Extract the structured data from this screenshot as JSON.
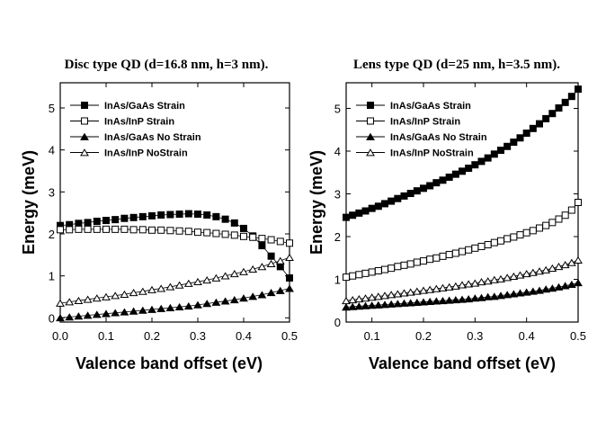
{
  "chart_data": [
    {
      "type": "scatter",
      "title": "Disc type QD (d=16.8 nm, h=3 nm).",
      "xlabel": "Valence band offset (eV)",
      "ylabel": "Energy (meV)",
      "xlim": [
        0.0,
        0.5
      ],
      "ylim": [
        -0.1,
        5.6
      ],
      "xticks": [
        "0.0",
        "0.1",
        "0.2",
        "0.3",
        "0.4",
        "0.5"
      ],
      "yticks": [
        "0",
        "1",
        "2",
        "3",
        "4",
        "5"
      ],
      "legend_position": "top-left",
      "series": [
        {
          "name": "InAs/GaAs Strain",
          "marker": "square",
          "fill": "filled",
          "x": [
            0.0,
            0.02,
            0.04,
            0.06,
            0.08,
            0.1,
            0.12,
            0.14,
            0.16,
            0.18,
            0.2,
            0.22,
            0.24,
            0.26,
            0.28,
            0.3,
            0.32,
            0.34,
            0.36,
            0.38,
            0.4,
            0.42,
            0.44,
            0.46,
            0.48,
            0.5
          ],
          "y": [
            2.2,
            2.22,
            2.25,
            2.27,
            2.3,
            2.32,
            2.34,
            2.37,
            2.39,
            2.41,
            2.43,
            2.45,
            2.46,
            2.47,
            2.48,
            2.47,
            2.45,
            2.41,
            2.35,
            2.26,
            2.13,
            1.95,
            1.72,
            1.47,
            1.22,
            0.95
          ]
        },
        {
          "name": "InAs/InP Strain",
          "marker": "square",
          "fill": "open",
          "x": [
            0.0,
            0.02,
            0.04,
            0.06,
            0.08,
            0.1,
            0.12,
            0.14,
            0.16,
            0.18,
            0.2,
            0.22,
            0.24,
            0.26,
            0.28,
            0.3,
            0.32,
            0.34,
            0.36,
            0.38,
            0.4,
            0.42,
            0.44,
            0.46,
            0.48,
            0.5
          ],
          "y": [
            2.1,
            2.1,
            2.11,
            2.11,
            2.11,
            2.11,
            2.11,
            2.11,
            2.1,
            2.1,
            2.09,
            2.09,
            2.08,
            2.07,
            2.06,
            2.04,
            2.03,
            2.01,
            1.99,
            1.97,
            1.94,
            1.92,
            1.89,
            1.86,
            1.82,
            1.78
          ]
        },
        {
          "name": "InAs/GaAs No Strain",
          "marker": "triangle",
          "fill": "filled",
          "x": [
            0.0,
            0.02,
            0.04,
            0.06,
            0.08,
            0.1,
            0.12,
            0.14,
            0.16,
            0.18,
            0.2,
            0.22,
            0.24,
            0.26,
            0.28,
            0.3,
            0.32,
            0.34,
            0.36,
            0.38,
            0.4,
            0.42,
            0.44,
            0.46,
            0.48,
            0.5
          ],
          "y": [
            0.0,
            0.02,
            0.04,
            0.06,
            0.08,
            0.1,
            0.12,
            0.14,
            0.16,
            0.18,
            0.2,
            0.22,
            0.24,
            0.26,
            0.28,
            0.31,
            0.34,
            0.37,
            0.4,
            0.43,
            0.47,
            0.51,
            0.55,
            0.6,
            0.65,
            0.7
          ]
        },
        {
          "name": "InAs/InP NoStrain",
          "marker": "triangle",
          "fill": "open",
          "x": [
            0.0,
            0.02,
            0.04,
            0.06,
            0.08,
            0.1,
            0.12,
            0.14,
            0.16,
            0.18,
            0.2,
            0.22,
            0.24,
            0.26,
            0.28,
            0.3,
            0.32,
            0.34,
            0.36,
            0.38,
            0.4,
            0.42,
            0.44,
            0.46,
            0.48,
            0.5
          ],
          "y": [
            0.35,
            0.38,
            0.41,
            0.44,
            0.47,
            0.5,
            0.53,
            0.56,
            0.6,
            0.63,
            0.67,
            0.7,
            0.74,
            0.78,
            0.82,
            0.86,
            0.9,
            0.95,
            1.0,
            1.05,
            1.1,
            1.16,
            1.22,
            1.29,
            1.36,
            1.44
          ]
        }
      ]
    },
    {
      "type": "scatter",
      "title": "Lens type QD (d=25 nm, h=3.5 nm).",
      "xlabel": "Valence band offset (eV)",
      "ylabel": "Energy (meV)",
      "xlim": [
        0.05,
        0.5
      ],
      "ylim": [
        0.0,
        5.6
      ],
      "xticks": [
        "0.1",
        "0.2",
        "0.3",
        "0.4",
        "0.5"
      ],
      "yticks": [
        "0",
        "1",
        "2",
        "3",
        "4",
        "5"
      ],
      "legend_position": "top-left",
      "series": [
        {
          "name": "InAs/GaAs Strain",
          "marker": "square",
          "fill": "filled",
          "x": [
            0.05,
            0.0625,
            0.075,
            0.0875,
            0.1,
            0.1125,
            0.125,
            0.1375,
            0.15,
            0.1625,
            0.175,
            0.1875,
            0.2,
            0.2125,
            0.225,
            0.2375,
            0.25,
            0.2625,
            0.275,
            0.2875,
            0.3,
            0.3125,
            0.325,
            0.3375,
            0.35,
            0.3625,
            0.375,
            0.3875,
            0.4,
            0.4125,
            0.425,
            0.4375,
            0.45,
            0.4625,
            0.475,
            0.4875,
            0.5
          ],
          "y": [
            2.45,
            2.5,
            2.55,
            2.6,
            2.66,
            2.71,
            2.77,
            2.83,
            2.89,
            2.95,
            3.01,
            3.07,
            3.13,
            3.19,
            3.26,
            3.32,
            3.39,
            3.46,
            3.53,
            3.6,
            3.68,
            3.76,
            3.84,
            3.93,
            4.02,
            4.11,
            4.21,
            4.31,
            4.42,
            4.53,
            4.64,
            4.76,
            4.88,
            5.01,
            5.14,
            5.28,
            5.45
          ]
        },
        {
          "name": "InAs/InP Strain",
          "marker": "square",
          "fill": "open",
          "x": [
            0.05,
            0.0625,
            0.075,
            0.0875,
            0.1,
            0.1125,
            0.125,
            0.1375,
            0.15,
            0.1625,
            0.175,
            0.1875,
            0.2,
            0.2125,
            0.225,
            0.2375,
            0.25,
            0.2625,
            0.275,
            0.2875,
            0.3,
            0.3125,
            0.325,
            0.3375,
            0.35,
            0.3625,
            0.375,
            0.3875,
            0.4,
            0.4125,
            0.425,
            0.4375,
            0.45,
            0.4625,
            0.475,
            0.4875,
            0.5
          ],
          "y": [
            1.05,
            1.08,
            1.11,
            1.14,
            1.17,
            1.2,
            1.23,
            1.26,
            1.3,
            1.33,
            1.36,
            1.4,
            1.43,
            1.47,
            1.5,
            1.54,
            1.58,
            1.61,
            1.65,
            1.69,
            1.73,
            1.77,
            1.81,
            1.86,
            1.9,
            1.95,
            1.99,
            2.04,
            2.09,
            2.14,
            2.2,
            2.26,
            2.33,
            2.41,
            2.5,
            2.62,
            2.8
          ]
        },
        {
          "name": "InAs/GaAs No Strain",
          "marker": "triangle",
          "fill": "filled",
          "x": [
            0.05,
            0.0625,
            0.075,
            0.0875,
            0.1,
            0.1125,
            0.125,
            0.1375,
            0.15,
            0.1625,
            0.175,
            0.1875,
            0.2,
            0.2125,
            0.225,
            0.2375,
            0.25,
            0.2625,
            0.275,
            0.2875,
            0.3,
            0.3125,
            0.325,
            0.3375,
            0.35,
            0.3625,
            0.375,
            0.3875,
            0.4,
            0.4125,
            0.425,
            0.4375,
            0.45,
            0.4625,
            0.475,
            0.4875,
            0.5
          ],
          "y": [
            0.35,
            0.36,
            0.37,
            0.38,
            0.39,
            0.4,
            0.41,
            0.42,
            0.43,
            0.44,
            0.45,
            0.46,
            0.47,
            0.48,
            0.49,
            0.5,
            0.51,
            0.52,
            0.53,
            0.54,
            0.56,
            0.57,
            0.59,
            0.6,
            0.62,
            0.64,
            0.66,
            0.68,
            0.7,
            0.72,
            0.74,
            0.77,
            0.79,
            0.82,
            0.85,
            0.88,
            0.92
          ]
        },
        {
          "name": "InAs/InP NoStrain",
          "marker": "triangle",
          "fill": "open",
          "x": [
            0.05,
            0.0625,
            0.075,
            0.0875,
            0.1,
            0.1125,
            0.125,
            0.1375,
            0.15,
            0.1625,
            0.175,
            0.1875,
            0.2,
            0.2125,
            0.225,
            0.2375,
            0.25,
            0.2625,
            0.275,
            0.2875,
            0.3,
            0.3125,
            0.325,
            0.3375,
            0.35,
            0.3625,
            0.375,
            0.3875,
            0.4,
            0.4125,
            0.425,
            0.4375,
            0.45,
            0.4625,
            0.475,
            0.4875,
            0.5
          ],
          "y": [
            0.5,
            0.52,
            0.54,
            0.56,
            0.58,
            0.6,
            0.62,
            0.64,
            0.66,
            0.68,
            0.7,
            0.72,
            0.74,
            0.76,
            0.78,
            0.8,
            0.82,
            0.84,
            0.87,
            0.89,
            0.91,
            0.94,
            0.96,
            0.99,
            1.01,
            1.04,
            1.07,
            1.1,
            1.13,
            1.16,
            1.19,
            1.22,
            1.26,
            1.3,
            1.34,
            1.39,
            1.45
          ]
        }
      ]
    }
  ]
}
